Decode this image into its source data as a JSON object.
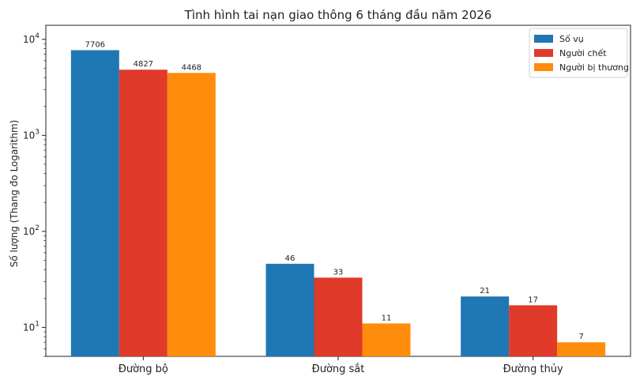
{
  "chart_data": {
    "type": "bar",
    "title": "Tình hình tai nạn giao thông 6 tháng đầu năm 2026",
    "xlabel": "",
    "ylabel": "Số lượng (Thang đo Logarithm)",
    "yscale": "log",
    "ylim": [
      5,
      14000
    ],
    "yticks": [
      {
        "value": 10,
        "mantissa": "10",
        "exp": "1"
      },
      {
        "value": 100,
        "mantissa": "10",
        "exp": "2"
      },
      {
        "value": 1000,
        "mantissa": "10",
        "exp": "3"
      },
      {
        "value": 10000,
        "mantissa": "10",
        "exp": "4"
      }
    ],
    "categories": [
      "Đường bộ",
      "Đường sắt",
      "Đường thủy"
    ],
    "series": [
      {
        "name": "Số vụ",
        "color": "#1f77b4",
        "values": [
          7706,
          46,
          21
        ]
      },
      {
        "name": "Người chết",
        "color": "#e03a2a",
        "values": [
          4827,
          33,
          17
        ]
      },
      {
        "name": "Người bị thương",
        "color": "#ff8c0a",
        "values": [
          4468,
          11,
          7
        ]
      }
    ],
    "legend_position": "top-right",
    "grid": false
  }
}
